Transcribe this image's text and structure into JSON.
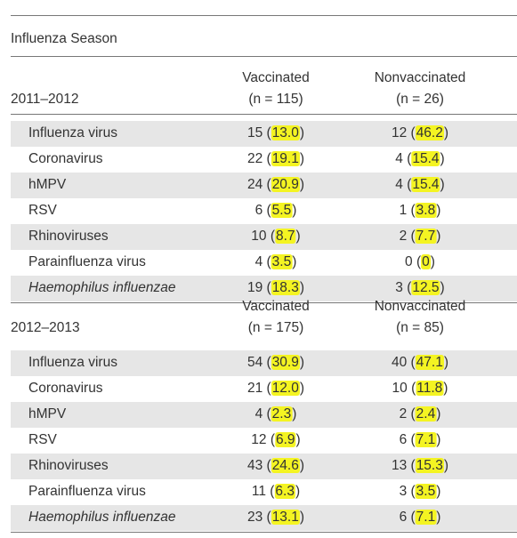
{
  "header": "Influenza Season",
  "sections": [
    {
      "season": "2011–2012",
      "columns": [
        {
          "name": "Vaccinated",
          "n": "(n = 115)"
        },
        {
          "name": "Nonvaccinated",
          "n": "(n = 26)"
        }
      ],
      "rows": [
        {
          "label": "Influenza virus",
          "values": [
            [
              "15",
              "13.0"
            ],
            [
              "12",
              "46.2"
            ]
          ]
        },
        {
          "label": "Coronavirus",
          "values": [
            [
              "22",
              "19.1"
            ],
            [
              "4",
              "15.4"
            ]
          ]
        },
        {
          "label": "hMPV",
          "values": [
            [
              "24",
              "20.9"
            ],
            [
              "4",
              "15.4"
            ]
          ]
        },
        {
          "label": "RSV",
          "values": [
            [
              "6",
              "5.5"
            ],
            [
              "1",
              "3.8"
            ]
          ]
        },
        {
          "label": "Rhinoviruses",
          "values": [
            [
              "10",
              "8.7"
            ],
            [
              "2",
              "7.7"
            ]
          ]
        },
        {
          "label": "Parainfluenza virus",
          "values": [
            [
              "4",
              "3.5"
            ],
            [
              "0",
              "0"
            ]
          ]
        },
        {
          "label": "Haemophilus influenzae",
          "italic": true,
          "values": [
            [
              "19",
              "18.3"
            ],
            [
              "3",
              "12.5"
            ]
          ]
        }
      ]
    },
    {
      "season": "2012–2013",
      "columns": [
        {
          "name": "Vaccinated",
          "n": "(n = 175)"
        },
        {
          "name": "Nonvaccinated",
          "n": "(n = 85)"
        }
      ],
      "rows": [
        {
          "label": "Influenza virus",
          "values": [
            [
              "54",
              "30.9"
            ],
            [
              "40",
              "47.1"
            ]
          ]
        },
        {
          "label": "Coronavirus",
          "values": [
            [
              "21",
              "12.0"
            ],
            [
              "10",
              "11.8"
            ]
          ]
        },
        {
          "label": "hMPV",
          "values": [
            [
              "4",
              "2.3"
            ],
            [
              "2",
              "2.4"
            ]
          ]
        },
        {
          "label": "RSV",
          "values": [
            [
              "12",
              "6.9"
            ],
            [
              "6",
              "7.1"
            ]
          ]
        },
        {
          "label": "Rhinoviruses",
          "values": [
            [
              "43",
              "24.6"
            ],
            [
              "13",
              "15.3"
            ]
          ]
        },
        {
          "label": "Parainfluenza virus",
          "values": [
            [
              "11",
              "6.3"
            ],
            [
              "3",
              "3.5"
            ]
          ]
        },
        {
          "label": "Haemophilus influenzae",
          "italic": true,
          "values": [
            [
              "23",
              "13.1"
            ],
            [
              "6",
              "7.1"
            ]
          ]
        }
      ]
    }
  ]
}
